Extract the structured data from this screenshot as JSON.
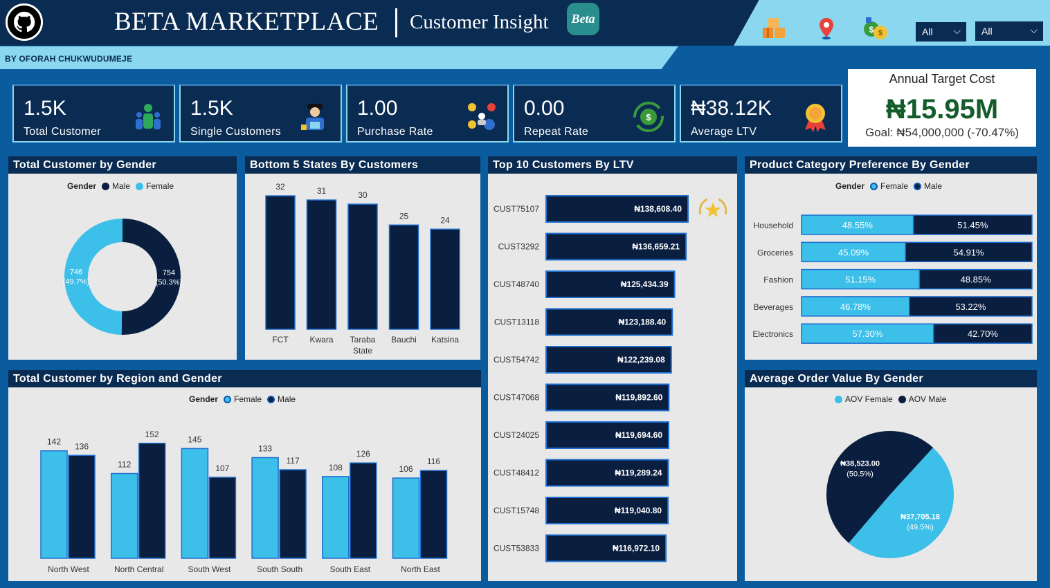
{
  "header": {
    "title": "BETA MARKETPLACE",
    "subtitle": "Customer Insight",
    "badge": "Beta",
    "byline": "BY OFORAH CHUKWUDUMEJE",
    "logo_icon": "github-icon"
  },
  "filters": {
    "icons": [
      "boxes-icon",
      "location-pin-icon",
      "money-bag-icon"
    ],
    "slicer1": "All",
    "slicer2": "All"
  },
  "kpis": [
    {
      "value": "1.5K",
      "label": "Total Customer",
      "icon": "customers-icon"
    },
    {
      "value": "1.5K",
      "label": "Single Customers",
      "icon": "single-customer-icon"
    },
    {
      "value": "1.00",
      "label": "Purchase Rate",
      "icon": "purchase-rate-icon"
    },
    {
      "value": "0.00",
      "label": "Repeat Rate",
      "icon": "repeat-rate-icon"
    },
    {
      "value": "₦38.12K",
      "label": "Average LTV",
      "icon": "award-ribbon-icon"
    }
  ],
  "target": {
    "title": "Annual Target Cost",
    "value": "₦15.95M",
    "goal": "Goal: ₦54,000,000 (-70.47%)"
  },
  "colors": {
    "male": "#0a1e3f",
    "female": "#3cbfe8",
    "navy": "#0a2b52",
    "panel": "#e8e8e8"
  },
  "gender_donut": {
    "title": "Total Customer by Gender",
    "legend_title": "Gender",
    "legend": [
      "Male",
      "Female"
    ],
    "chart_data": {
      "type": "pie",
      "series": [
        {
          "name": "Male",
          "value": 754,
          "label": "754",
          "pct": "(50.3%)"
        },
        {
          "name": "Female",
          "value": 746,
          "label": "746",
          "pct": "(49.7%)"
        }
      ]
    }
  },
  "states": {
    "title": "Bottom 5 States By Customers",
    "chart_data": {
      "type": "bar",
      "categories": [
        "FCT",
        "Kwara",
        "Taraba State",
        "Bauchi",
        "Katsina"
      ],
      "values": [
        32,
        31,
        30,
        25,
        24
      ],
      "ylim": [
        0,
        34
      ]
    }
  },
  "ltv": {
    "title": "Top 10 Customers By LTV",
    "star_icon": "star-laurel-icon",
    "chart_data": {
      "type": "bar",
      "categories": [
        "CUST75107",
        "CUST3292",
        "CUST48740",
        "CUST13118",
        "CUST54742",
        "CUST47068",
        "CUST24025",
        "CUST48412",
        "CUST15748",
        "CUST53833"
      ],
      "values": [
        138608.4,
        136659.21,
        125434.39,
        123188.4,
        122239.08,
        119892.6,
        119694.6,
        119289.24,
        119040.8,
        116972.1
      ],
      "labels": [
        "₦138,608.40",
        "₦136,659.21",
        "₦125,434.39",
        "₦123,188.40",
        "₦122,239.08",
        "₦119,892.60",
        "₦119,694.60",
        "₦119,289.24",
        "₦119,040.80",
        "₦116,972.10"
      ]
    }
  },
  "category": {
    "title": "Product Category Preference By Gender",
    "legend_title": "Gender",
    "legend": [
      "Female",
      "Male"
    ],
    "chart_data": {
      "type": "bar",
      "categories": [
        "Household",
        "Groceries",
        "Fashion",
        "Beverages",
        "Electronics"
      ],
      "series": [
        {
          "name": "Female",
          "values": [
            48.55,
            45.09,
            51.15,
            46.78,
            57.3
          ],
          "labels": [
            "48.55%",
            "45.09%",
            "51.15%",
            "46.78%",
            "57.30%"
          ]
        },
        {
          "name": "Male",
          "values": [
            51.45,
            54.91,
            48.85,
            53.22,
            42.7
          ],
          "labels": [
            "51.45%",
            "54.91%",
            "48.85%",
            "53.22%",
            "42.70%"
          ]
        }
      ]
    }
  },
  "region": {
    "title": "Total Customer by Region and Gender",
    "legend_title": "Gender",
    "legend": [
      "Female",
      "Male"
    ],
    "chart_data": {
      "type": "bar",
      "categories": [
        "North West",
        "North Central",
        "South West",
        "South South",
        "South East",
        "North East"
      ],
      "series": [
        {
          "name": "Female",
          "values": [
            142,
            112,
            145,
            133,
            108,
            106
          ]
        },
        {
          "name": "Male",
          "values": [
            136,
            152,
            107,
            117,
            126,
            116
          ]
        }
      ],
      "ylim": [
        0,
        160
      ]
    }
  },
  "aov": {
    "title": "Average Order Value By Gender",
    "legend": [
      "AOV Female",
      "AOV Male"
    ],
    "chart_data": {
      "type": "pie",
      "series": [
        {
          "name": "AOV Male",
          "value": 38523.0,
          "label": "₦38,523.00",
          "pct": "(50.5%)"
        },
        {
          "name": "AOV Female",
          "value": 37705.18,
          "label": "₦37,705.18",
          "pct": "(49.5%)"
        }
      ]
    }
  }
}
